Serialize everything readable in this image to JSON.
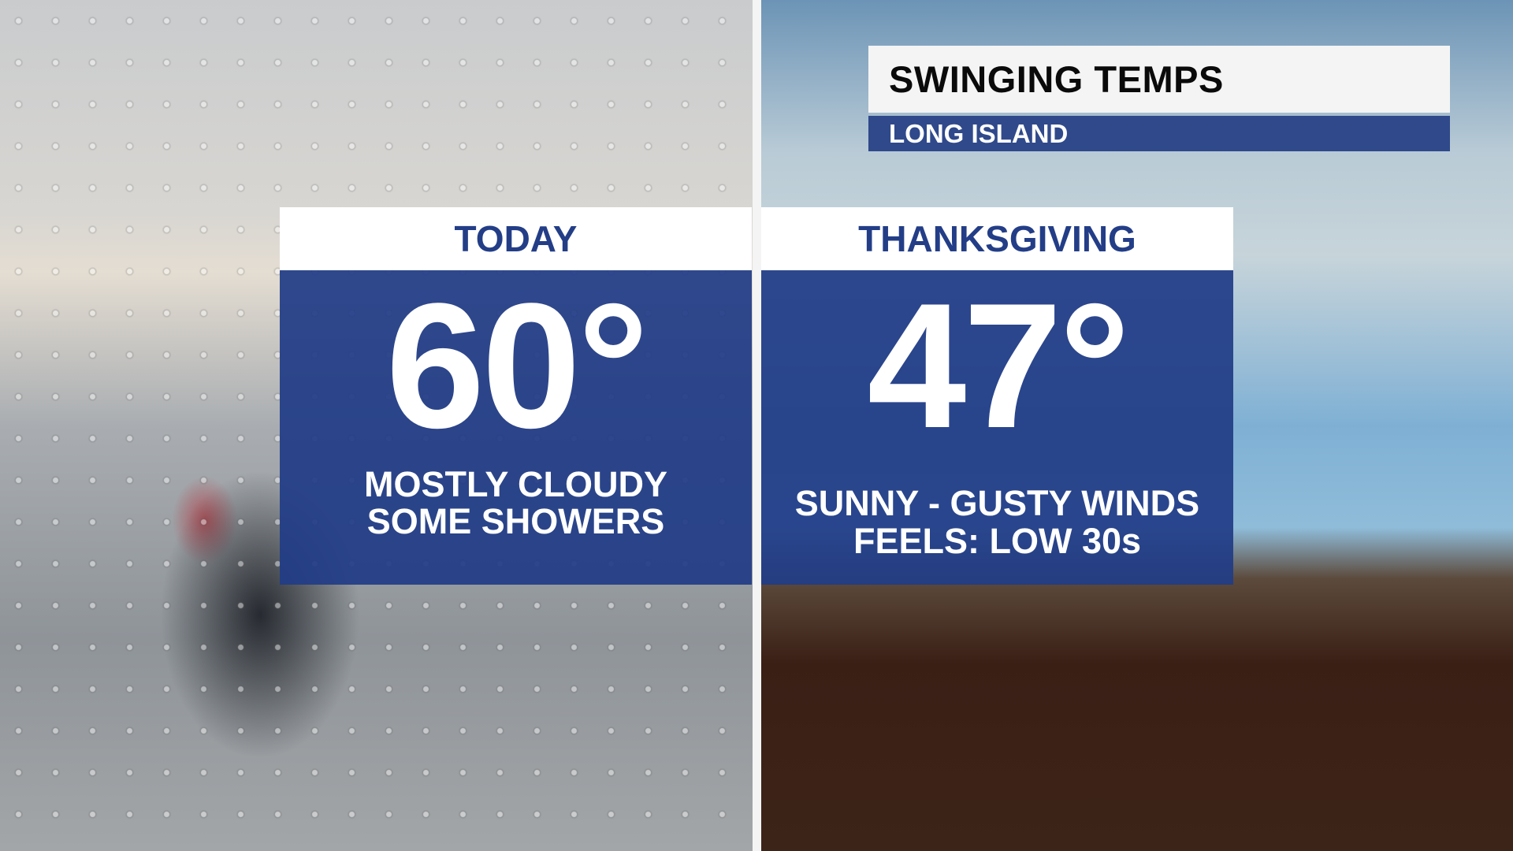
{
  "header": {
    "title": "SWINGING TEMPS",
    "subtitle": "LONG ISLAND"
  },
  "colors": {
    "brand_blue": "#233e87",
    "header_bar_blue": "#30498b",
    "white": "#ffffff"
  },
  "panels": [
    {
      "label": "TODAY",
      "temp": "60°",
      "lines": [
        "MOSTLY CLOUDY",
        "SOME SHOWERS"
      ]
    },
    {
      "label": "THANKSGIVING",
      "temp": "47°",
      "lines": [
        "SUNNY - GUSTY WINDS",
        "FEELS: LOW 30s"
      ]
    }
  ]
}
